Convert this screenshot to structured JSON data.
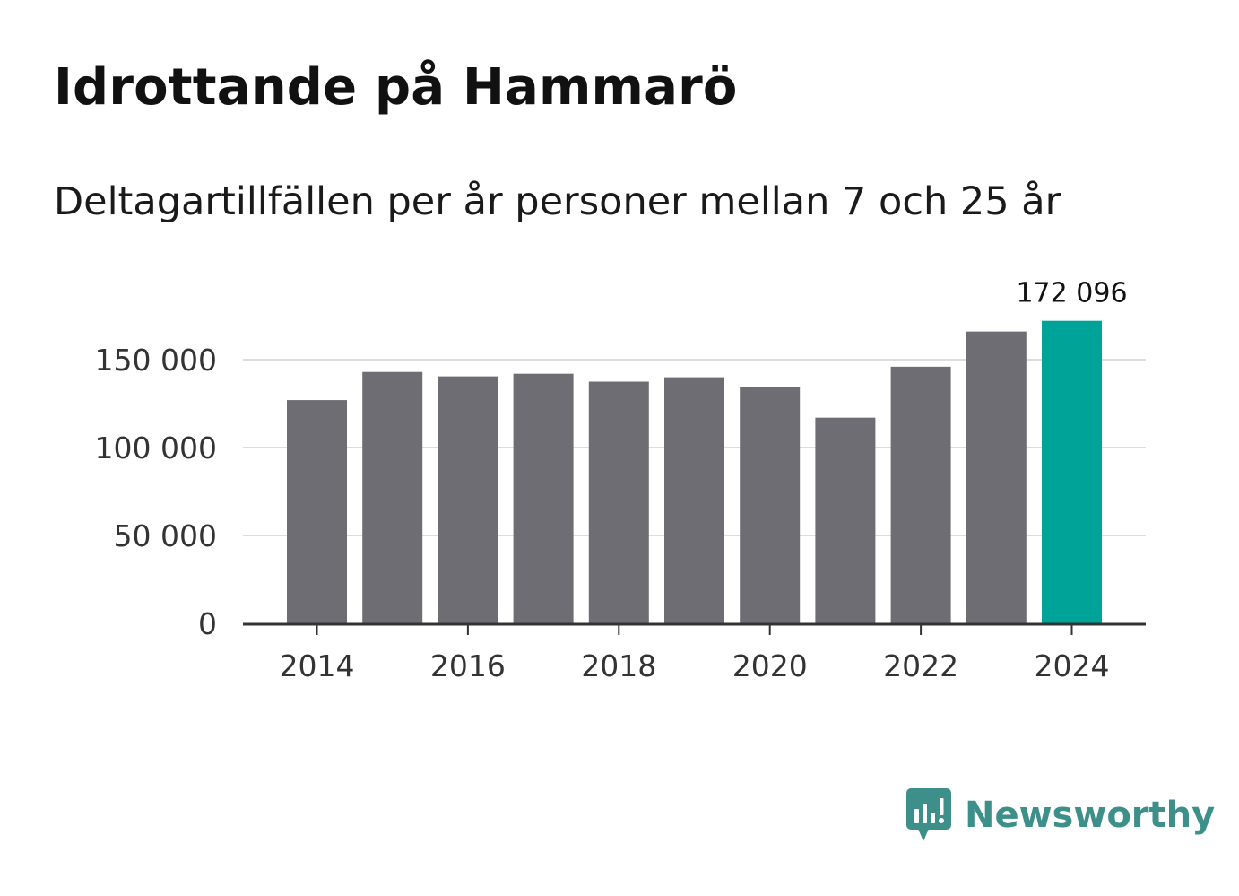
{
  "title": "Idrottande på Hammarö",
  "subtitle": "Deltagartillfällen per år personer mellan 7 och 25 år",
  "brand": {
    "name": "Newsworthy",
    "icon": "newsworthy-logo-icon",
    "color": "#3d8f8a"
  },
  "colors": {
    "bar": "#6e6d73",
    "highlight": "#00a398",
    "grid": "#dddddd",
    "axis": "#333333"
  },
  "chart_data": {
    "type": "bar",
    "title": "Idrottande på Hammarö",
    "subtitle": "Deltagartillfällen per år personer mellan 7 och 25 år",
    "xlabel": "",
    "ylabel": "",
    "categories": [
      "2014",
      "2015",
      "2016",
      "2017",
      "2018",
      "2019",
      "2020",
      "2021",
      "2022",
      "2023",
      "2024"
    ],
    "values": [
      127000,
      143000,
      140500,
      142000,
      137500,
      140000,
      134500,
      117000,
      146000,
      166000,
      172096
    ],
    "highlight_index": 10,
    "highlight_label": "172 096",
    "ylim": [
      0,
      175000
    ],
    "yticks": [
      0,
      50000,
      100000,
      150000
    ],
    "ytick_labels": [
      "0",
      "50 000",
      "100 000",
      "150 000"
    ],
    "xticks": [
      "2014",
      "2016",
      "2018",
      "2020",
      "2022",
      "2024"
    ],
    "grid": true,
    "legend": "none"
  }
}
